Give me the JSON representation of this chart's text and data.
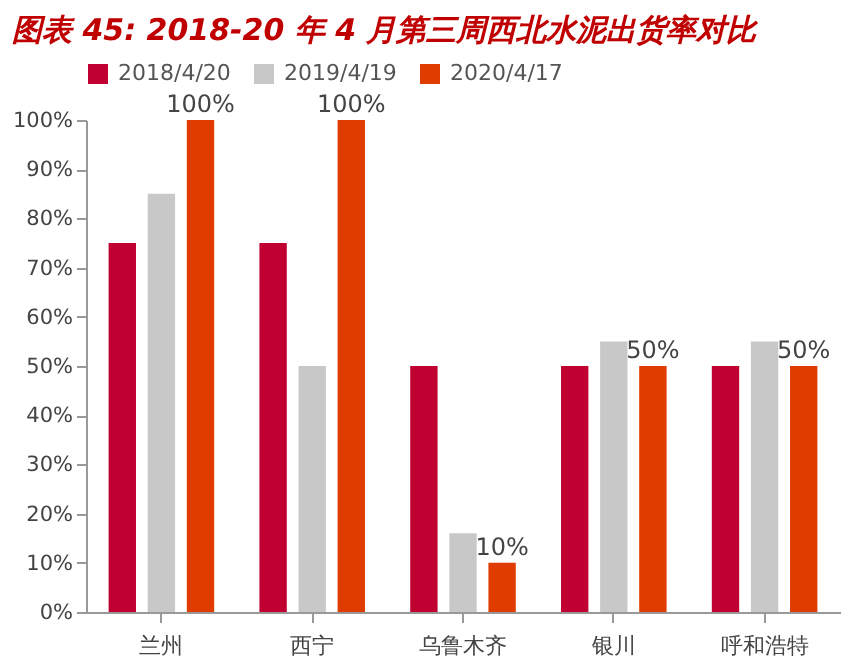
{
  "chart_data": {
    "type": "bar",
    "title": "图表 45: 2018-20 年 4 月第三周西北水泥出货率对比",
    "categories": [
      "兰州",
      "西宁",
      "乌鲁木齐",
      "银川",
      "呼和浩特"
    ],
    "series": [
      {
        "name": "2018/4/20",
        "color": "#c00030",
        "values": [
          75,
          75,
          50,
          50,
          50
        ]
      },
      {
        "name": "2019/4/19",
        "color": "#c8c8c8",
        "values": [
          85,
          50,
          16,
          55,
          55
        ]
      },
      {
        "name": "2020/4/17",
        "color": "#e03c00",
        "values": [
          100,
          100,
          10,
          50,
          50
        ],
        "value_labels": [
          "100%",
          "100%",
          "10%",
          "50%",
          "50%"
        ]
      }
    ],
    "ylim": [
      0,
      100
    ],
    "yticks": [
      {
        "value": 0,
        "label": "0%"
      },
      {
        "value": 10,
        "label": "10%"
      },
      {
        "value": 20,
        "label": "20%"
      },
      {
        "value": 30,
        "label": "30%"
      },
      {
        "value": 40,
        "label": "40%"
      },
      {
        "value": 50,
        "label": "50%"
      },
      {
        "value": 60,
        "label": "60%"
      },
      {
        "value": 70,
        "label": "70%"
      },
      {
        "value": 80,
        "label": "80%"
      },
      {
        "value": 90,
        "label": "90%"
      },
      {
        "value": 100,
        "label": "100%"
      }
    ],
    "grid": false,
    "legend": "top"
  }
}
